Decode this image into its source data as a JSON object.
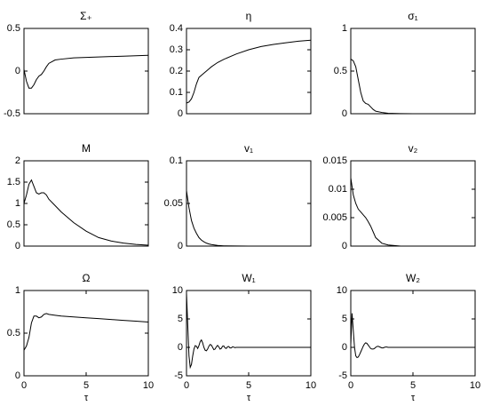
{
  "chart_data": [
    {
      "type": "line",
      "title": "Σ₊",
      "x": [
        0,
        0.2,
        0.4,
        0.6,
        0.8,
        1,
        1.2,
        1.4,
        1.6,
        1.8,
        2,
        2.5,
        3,
        4,
        5,
        6,
        7,
        8,
        9,
        10
      ],
      "values": [
        0.02,
        -0.12,
        -0.2,
        -0.2,
        -0.16,
        -0.1,
        -0.06,
        -0.04,
        0,
        0.05,
        0.09,
        0.13,
        0.14,
        0.155,
        0.16,
        0.165,
        0.17,
        0.175,
        0.18,
        0.185
      ],
      "color": "#000000",
      "xlim": [
        0,
        10
      ],
      "ylim": [
        -0.5,
        0.5
      ],
      "yticks": [
        -0.5,
        0,
        0.5
      ]
    },
    {
      "type": "line",
      "title": "η",
      "x": [
        0,
        0.2,
        0.4,
        0.6,
        0.8,
        1,
        1.2,
        1.4,
        1.6,
        1.8,
        2,
        2.5,
        3,
        4,
        5,
        6,
        7,
        8,
        9,
        10
      ],
      "values": [
        0.05,
        0.055,
        0.07,
        0.1,
        0.14,
        0.17,
        0.18,
        0.19,
        0.2,
        0.21,
        0.22,
        0.24,
        0.255,
        0.28,
        0.3,
        0.315,
        0.325,
        0.333,
        0.34,
        0.345
      ],
      "color": "#000000",
      "xlim": [
        0,
        10
      ],
      "ylim": [
        0,
        0.4
      ],
      "yticks": [
        0,
        0.1,
        0.2,
        0.3,
        0.4
      ]
    },
    {
      "type": "line",
      "title": "σ₁",
      "x": [
        0,
        0.2,
        0.4,
        0.6,
        0.8,
        1,
        1.2,
        1.4,
        1.6,
        1.8,
        2,
        2.5,
        3,
        4,
        5,
        6,
        7,
        8,
        9,
        10
      ],
      "values": [
        0.64,
        0.62,
        0.55,
        0.4,
        0.25,
        0.15,
        0.12,
        0.11,
        0.08,
        0.05,
        0.03,
        0.015,
        0.005,
        0.001,
        0,
        0,
        0,
        0,
        0,
        0
      ],
      "color": "#000000",
      "xlim": [
        0,
        10
      ],
      "ylim": [
        0,
        1
      ],
      "yticks": [
        0,
        0.5,
        1
      ]
    },
    {
      "type": "line",
      "title": "M",
      "x": [
        0,
        0.2,
        0.4,
        0.6,
        0.8,
        1,
        1.2,
        1.4,
        1.6,
        1.8,
        2,
        2.5,
        3,
        4,
        5,
        6,
        7,
        8,
        9,
        10
      ],
      "values": [
        1.0,
        1.2,
        1.45,
        1.55,
        1.4,
        1.25,
        1.22,
        1.25,
        1.25,
        1.2,
        1.1,
        0.95,
        0.8,
        0.55,
        0.35,
        0.2,
        0.12,
        0.07,
        0.04,
        0.02
      ],
      "color": "#000000",
      "xlim": [
        0,
        10
      ],
      "ylim": [
        0,
        2
      ],
      "yticks": [
        0,
        0.5,
        1,
        1.5,
        2
      ]
    },
    {
      "type": "line",
      "title": "v₁",
      "x": [
        0,
        0.2,
        0.4,
        0.6,
        0.8,
        1,
        1.2,
        1.4,
        1.6,
        1.8,
        2,
        2.5,
        3,
        4,
        5,
        6,
        7,
        8,
        9,
        10
      ],
      "values": [
        0.065,
        0.045,
        0.03,
        0.021,
        0.015,
        0.01,
        0.007,
        0.005,
        0.0035,
        0.0025,
        0.0018,
        0.0008,
        0.0003,
        0.0001,
        0,
        0,
        0,
        0,
        0,
        0
      ],
      "color": "#000000",
      "xlim": [
        0,
        10
      ],
      "ylim": [
        0,
        0.1
      ],
      "yticks": [
        0,
        0.05,
        0.1
      ]
    },
    {
      "type": "line",
      "title": "v₂",
      "x": [
        0,
        0.2,
        0.4,
        0.6,
        0.8,
        1,
        1.2,
        1.4,
        1.6,
        1.8,
        2,
        2.5,
        3,
        4,
        5,
        6,
        7,
        8,
        9,
        10
      ],
      "values": [
        0.012,
        0.009,
        0.0075,
        0.0065,
        0.006,
        0.0055,
        0.005,
        0.0043,
        0.0035,
        0.0025,
        0.0015,
        0.0005,
        0.0002,
        0,
        0,
        0,
        0,
        0,
        0,
        0
      ],
      "color": "#000000",
      "xlim": [
        0,
        10
      ],
      "ylim": [
        0,
        0.015
      ],
      "yticks": [
        0,
        0.005,
        0.01,
        0.015
      ]
    },
    {
      "type": "line",
      "title": "Ω",
      "xlabel": "τ",
      "x": [
        0,
        0.2,
        0.4,
        0.6,
        0.8,
        1,
        1.2,
        1.4,
        1.6,
        1.8,
        2,
        2.5,
        3,
        4,
        5,
        6,
        7,
        8,
        9,
        10
      ],
      "values": [
        0.3,
        0.35,
        0.45,
        0.62,
        0.7,
        0.7,
        0.68,
        0.69,
        0.72,
        0.73,
        0.72,
        0.71,
        0.7,
        0.69,
        0.68,
        0.67,
        0.66,
        0.65,
        0.64,
        0.63
      ],
      "color": "#000000",
      "xlim": [
        0,
        10
      ],
      "ylim": [
        0,
        1
      ],
      "xticks": [
        0,
        5,
        10
      ],
      "yticks": [
        0,
        0.5,
        1
      ]
    },
    {
      "type": "line",
      "title": "W₁",
      "xlabel": "τ",
      "x": [
        0,
        0.1,
        0.2,
        0.3,
        0.4,
        0.5,
        0.6,
        0.7,
        0.8,
        0.9,
        1,
        1.1,
        1.2,
        1.3,
        1.4,
        1.5,
        1.6,
        1.7,
        1.8,
        1.9,
        2,
        2.1,
        2.2,
        2.3,
        2.4,
        2.5,
        2.6,
        2.7,
        2.8,
        2.9,
        3,
        3.1,
        3.2,
        3.3,
        3.4,
        3.5,
        3.6,
        3.7,
        3.8,
        3.9,
        4,
        5,
        6,
        7,
        8,
        9,
        10
      ],
      "values": [
        9.5,
        4,
        -1.5,
        -3.5,
        -3,
        -1.5,
        -0.3,
        0.3,
        0.2,
        -0.2,
        0.3,
        1,
        1.3,
        0.8,
        0,
        -0.5,
        -0.6,
        -0.3,
        0.2,
        0.5,
        0.4,
        0,
        -0.4,
        -0.3,
        0.1,
        0.35,
        0.1,
        -0.3,
        -0.2,
        0.2,
        0.25,
        -0.1,
        -0.2,
        0.1,
        0.15,
        -0.1,
        -0.1,
        0.1,
        0.05,
        -0.05,
        0,
        0,
        0,
        0,
        0,
        0,
        0
      ],
      "color": "#000000",
      "xlim": [
        0,
        10
      ],
      "ylim": [
        -5,
        10
      ],
      "xticks": [
        0,
        5,
        10
      ],
      "yticks": [
        -5,
        0,
        5,
        10
      ]
    },
    {
      "type": "line",
      "title": "W₂",
      "xlabel": "τ",
      "x": [
        0,
        0.1,
        0.2,
        0.3,
        0.4,
        0.5,
        0.6,
        0.7,
        0.8,
        0.9,
        1,
        1.1,
        1.2,
        1.3,
        1.4,
        1.5,
        1.6,
        1.7,
        1.8,
        1.9,
        2,
        2.1,
        2.2,
        2.3,
        2.4,
        2.5,
        2.6,
        2.7,
        2.8,
        2.9,
        3,
        3.1,
        3.2,
        3.3,
        3.4,
        3.5,
        3.6,
        3.7,
        3.8,
        3.9,
        4,
        5,
        6,
        7,
        8,
        9,
        10
      ],
      "values": [
        0.5,
        6,
        3,
        0,
        -1.5,
        -1.8,
        -1.7,
        -1.3,
        -0.8,
        -0.3,
        0.2,
        0.6,
        0.8,
        0.7,
        0.4,
        0.1,
        -0.2,
        -0.3,
        -0.3,
        -0.2,
        0,
        0.15,
        0.2,
        0.1,
        0,
        -0.1,
        -0.1,
        0,
        0.05,
        0.05,
        0,
        0,
        0,
        0,
        0,
        0,
        0,
        0,
        0,
        0,
        0,
        0,
        0,
        0,
        0,
        0,
        0
      ],
      "color": "#000000",
      "xlim": [
        0,
        10
      ],
      "ylim": [
        -5,
        10
      ],
      "xticks": [
        0,
        5,
        10
      ],
      "yticks": [
        -5,
        0,
        5,
        10
      ]
    }
  ]
}
